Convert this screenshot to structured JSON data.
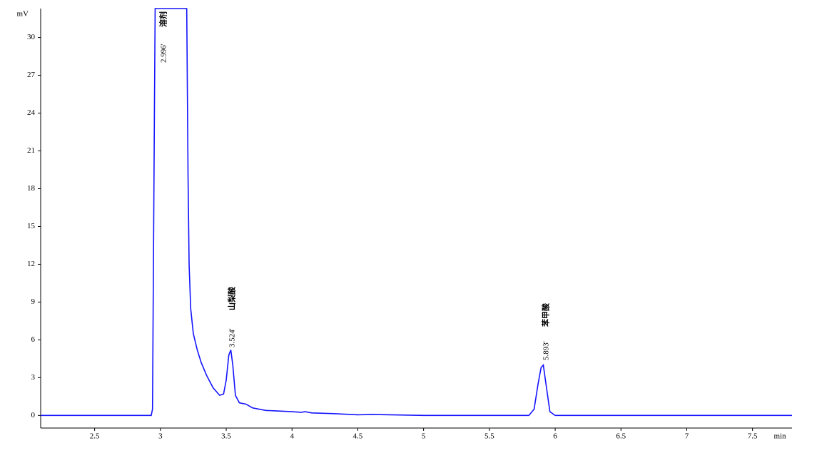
{
  "chart_data": {
    "type": "line",
    "y_label": "mV",
    "x_label": "min",
    "xlim": [
      2.09,
      7.8
    ],
    "ylim": [
      -1,
      32.3
    ],
    "xticks": [
      2.5,
      3,
      3.5,
      4,
      4.5,
      5,
      5.5,
      6,
      6.5,
      7,
      7.5
    ],
    "yticks": [
      0,
      3,
      6,
      9,
      12,
      15,
      18,
      21,
      24,
      27,
      30
    ],
    "grid": false,
    "series": [
      {
        "color": "#1414ff",
        "x": [
          2.09,
          2.93,
          2.94,
          2.947,
          2.955,
          2.96,
          3.2,
          3.21,
          3.218,
          3.23,
          3.25,
          3.28,
          3.31,
          3.35,
          3.4,
          3.45,
          3.48,
          3.5,
          3.52,
          3.535,
          3.55,
          3.57,
          3.6,
          3.65,
          3.7,
          3.8,
          4.0,
          4.07,
          4.1,
          4.15,
          4.3,
          4.5,
          4.6,
          5.0,
          5.8,
          5.84,
          5.87,
          5.893,
          5.91,
          5.93,
          5.96,
          6.0,
          7.5,
          7.8
        ],
        "values": [
          0,
          0,
          0.5,
          12,
          25,
          32.3,
          32.3,
          19,
          12,
          8.5,
          6.5,
          5.2,
          4.2,
          3.2,
          2.2,
          1.6,
          1.7,
          2.8,
          4.8,
          5.2,
          4.0,
          1.6,
          1.0,
          0.9,
          0.6,
          0.4,
          0.3,
          0.25,
          0.3,
          0.2,
          0.15,
          0.05,
          0.08,
          0,
          0,
          0.5,
          2.5,
          3.8,
          4.0,
          2.5,
          0.3,
          0,
          0,
          0
        ]
      }
    ],
    "annotations": [
      {
        "label": "2.996'",
        "name": "溶剂"
      },
      {
        "label": "3.524'",
        "name": "山梨酸"
      },
      {
        "label": "5.893'",
        "name": "苯甲酸"
      }
    ]
  }
}
